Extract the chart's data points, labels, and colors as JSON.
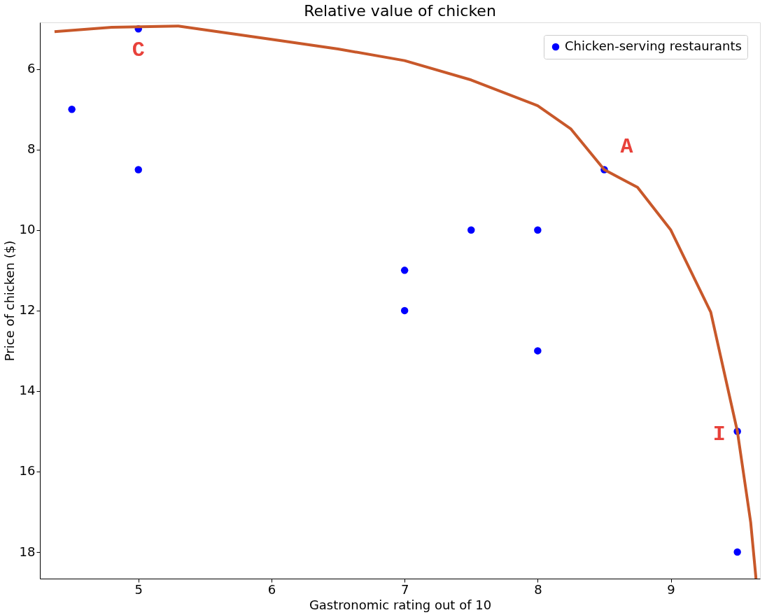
{
  "chart_data": {
    "type": "scatter",
    "title": "Relative value of chicken",
    "xlabel": "Gastronomic rating out of 10",
    "ylabel": "Price of chicken ($)",
    "xlim": [
      4.26,
      9.67
    ],
    "ylim": [
      18.66,
      4.84
    ],
    "xticks": [
      5,
      6,
      7,
      8,
      9
    ],
    "yticks": [
      6,
      8,
      10,
      12,
      14,
      16,
      18
    ],
    "grid": false,
    "legend": "top right",
    "series": [
      {
        "name": "Chicken-serving restaurants",
        "marker": "circle",
        "color": "#0000ff",
        "x": [
          4.5,
          5,
          5,
          7,
          7,
          7.5,
          8,
          8,
          8.5,
          9.5,
          9.5
        ],
        "values": [
          7,
          5,
          8.5,
          11,
          12,
          10,
          10,
          13,
          8.5,
          15,
          18
        ]
      },
      {
        "type": "line",
        "marker": "none",
        "color": "#c8582a",
        "line_style": "solid",
        "x": [
          4.37,
          4.8,
          5.3,
          6,
          6.5,
          7,
          7.5,
          8,
          8.25,
          8.5,
          8.75,
          9,
          9.3,
          9.5,
          9.6,
          9.64
        ],
        "values": [
          5.07,
          4.96,
          4.93,
          5.26,
          5.5,
          5.79,
          6.27,
          6.91,
          7.49,
          8.5,
          8.94,
          10.0,
          12.04,
          15.0,
          17.26,
          18.66
        ]
      }
    ],
    "annotations": [
      {
        "text": "C",
        "x": 5,
        "y": 5
      },
      {
        "text": "A",
        "x": 8.5,
        "y": 8.5
      },
      {
        "text": "I",
        "x": 9.5,
        "y": 15
      }
    ]
  }
}
